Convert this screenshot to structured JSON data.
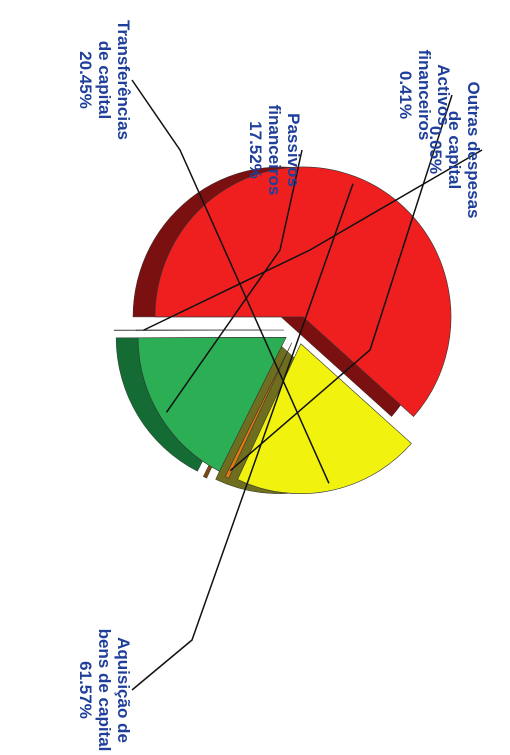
{
  "chart_data": {
    "type": "pie",
    "title": "",
    "orientation": "rotated-90-clockwise",
    "slices": [
      {
        "label_lines": [
          "Aquisição de",
          "bens de capital",
          "61.57%"
        ],
        "value": 61.57,
        "color": "#ef1f1f",
        "side_color": "#7a1010"
      },
      {
        "label_lines": [
          "Transferências",
          "de capital",
          "20.45%"
        ],
        "value": 20.45,
        "color": "#f2f20f",
        "side_color": "#6e6e1e"
      },
      {
        "label_lines": [
          "Activos",
          "financeiros",
          "0.41%"
        ],
        "value": 0.41,
        "color": "#e07a10",
        "side_color": "#7a4a10"
      },
      {
        "label_lines": [
          "Passivos",
          "financeiros",
          "17.52%"
        ],
        "value": 17.52,
        "color": "#2cae55",
        "side_color": "#156b34"
      },
      {
        "label_lines": [
          "Outras despesas",
          "de capital",
          "0.05%"
        ],
        "value": 0.05,
        "color": "#1e8f4e",
        "side_color": "#0f5a31"
      }
    ]
  }
}
